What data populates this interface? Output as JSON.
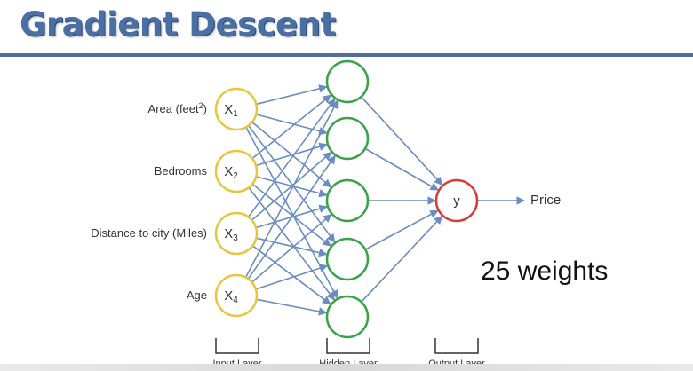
{
  "title": "Gradient Descent",
  "inputs": [
    {
      "feature": "Area (feet",
      "feature_sup": "2",
      "feature_close": ")",
      "node": "X",
      "sub": "1"
    },
    {
      "feature": "Bedrooms",
      "node": "X",
      "sub": "2"
    },
    {
      "feature": "Distance to city (Miles)",
      "node": "X",
      "sub": "3"
    },
    {
      "feature": "Age",
      "node": "X",
      "sub": "4"
    }
  ],
  "hidden_count": 5,
  "output": {
    "node": "y",
    "label": "Price"
  },
  "layers": [
    "Input Layer",
    "Hidden Layer",
    "Output Layer"
  ],
  "weights_text": "25 weights",
  "colors": {
    "title": "#4a6fa5",
    "rule": "#4f6e9e",
    "input_node": "#e6c640",
    "hidden_node": "#3aa34a",
    "output_node": "#d63a3a",
    "edge": "#6a8cc0"
  }
}
